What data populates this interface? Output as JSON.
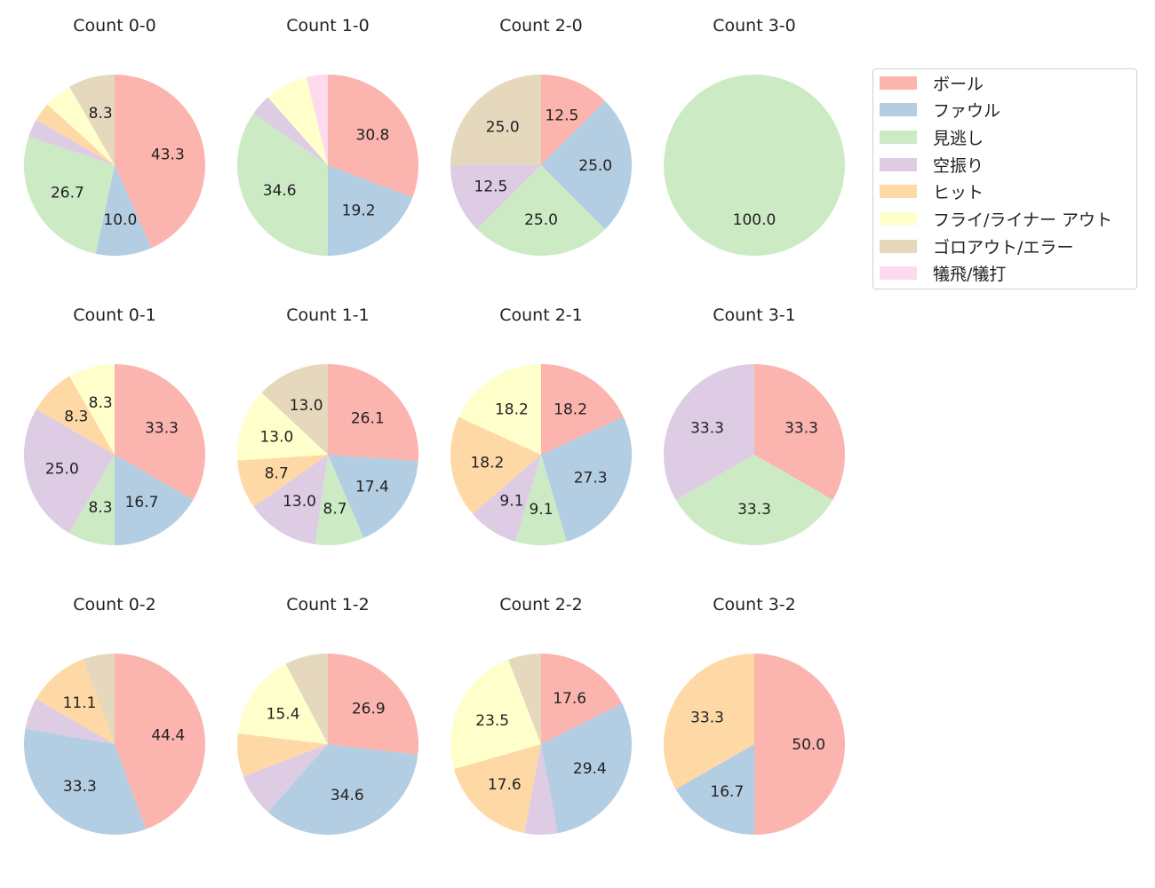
{
  "chart_data": {
    "type": "pie",
    "categories": [
      "ボール",
      "ファウル",
      "見逃し",
      "空振り",
      "ヒット",
      "フライ/ライナー アウト",
      "ゴロアウト/エラー",
      "犠飛/犠打"
    ],
    "colors": [
      "#fbb4ae",
      "#b3cde3",
      "#ccebc5",
      "#decbe4",
      "#fed9a6",
      "#ffffcc",
      "#e5d8bd",
      "#fddaec"
    ],
    "start_angle_deg": 90,
    "direction": "clockwise",
    "label_min_pct": 8,
    "legend_placement": "upper-right",
    "charts": [
      {
        "title": "Count 0-0",
        "values": [
          43.3,
          10.0,
          26.7,
          3.3,
          3.3,
          5.0,
          8.3,
          0
        ]
      },
      {
        "title": "Count 1-0",
        "values": [
          30.8,
          19.2,
          34.6,
          3.8,
          0,
          7.7,
          0,
          3.8
        ]
      },
      {
        "title": "Count 2-0",
        "values": [
          12.5,
          25.0,
          25.0,
          12.5,
          0,
          0,
          25.0,
          0
        ]
      },
      {
        "title": "Count 3-0",
        "values": [
          0,
          0,
          100.0,
          0,
          0,
          0,
          0,
          0
        ]
      },
      {
        "title": "Count 0-1",
        "values": [
          33.3,
          16.7,
          8.3,
          25.0,
          8.3,
          8.3,
          0,
          0
        ]
      },
      {
        "title": "Count 1-1",
        "values": [
          26.1,
          17.4,
          8.7,
          13.0,
          8.7,
          13.0,
          13.0,
          0
        ]
      },
      {
        "title": "Count 2-1",
        "values": [
          18.2,
          27.3,
          9.1,
          9.1,
          18.2,
          18.2,
          0,
          0
        ]
      },
      {
        "title": "Count 3-1",
        "values": [
          33.3,
          0,
          33.3,
          33.3,
          0,
          0,
          0,
          0
        ]
      },
      {
        "title": "Count 0-2",
        "values": [
          44.4,
          33.3,
          0,
          5.6,
          11.1,
          0,
          5.6,
          0
        ]
      },
      {
        "title": "Count 1-2",
        "values": [
          26.9,
          34.6,
          0,
          7.7,
          7.7,
          15.4,
          7.7,
          0
        ]
      },
      {
        "title": "Count 2-2",
        "values": [
          17.6,
          29.4,
          0,
          5.9,
          17.6,
          23.5,
          5.9,
          0
        ]
      },
      {
        "title": "Count 3-2",
        "values": [
          50.0,
          16.7,
          0,
          0,
          33.3,
          0,
          0,
          0
        ]
      }
    ]
  }
}
